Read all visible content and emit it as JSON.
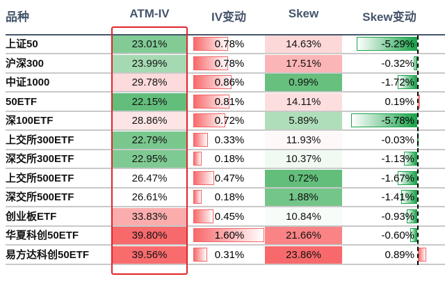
{
  "headers": [
    "品种",
    "ATM-IV",
    "IV变动",
    "Skew",
    "Skew变动"
  ],
  "colors": {
    "green": "#63be7b",
    "red": "#f8696b",
    "white": "#ffffff",
    "header": "#44546a",
    "highlight": "#e0242a"
  },
  "chart_data": {
    "type": "table",
    "columns": [
      "品种",
      "ATM-IV",
      "IV变动",
      "Skew",
      "Skew变动"
    ],
    "rows": [
      {
        "name": "上证50",
        "atm_iv": "23.01%",
        "iv_chg": "0.78%",
        "skew": "14.63%",
        "skew_chg": "-5.29%"
      },
      {
        "name": "沪深300",
        "atm_iv": "23.99%",
        "iv_chg": "0.78%",
        "skew": "17.51%",
        "skew_chg": "-0.32%"
      },
      {
        "name": "中证1000",
        "atm_iv": "29.78%",
        "iv_chg": "0.86%",
        "skew": "0.99%",
        "skew_chg": "-1.72%"
      },
      {
        "name": "50ETF",
        "atm_iv": "22.15%",
        "iv_chg": "0.81%",
        "skew": "14.11%",
        "skew_chg": "0.19%"
      },
      {
        "name": "深100ETF",
        "atm_iv": "28.86%",
        "iv_chg": "0.72%",
        "skew": "5.89%",
        "skew_chg": "-5.78%"
      },
      {
        "name": "上交所300ETF",
        "atm_iv": "22.79%",
        "iv_chg": "0.33%",
        "skew": "11.93%",
        "skew_chg": "-0.03%"
      },
      {
        "name": "深交所300ETF",
        "atm_iv": "22.95%",
        "iv_chg": "0.18%",
        "skew": "10.37%",
        "skew_chg": "-1.13%"
      },
      {
        "name": "上交所500ETF",
        "atm_iv": "26.47%",
        "iv_chg": "0.47%",
        "skew": "0.72%",
        "skew_chg": "-1.67%"
      },
      {
        "name": "深交所500ETF",
        "atm_iv": "26.61%",
        "iv_chg": "0.18%",
        "skew": "1.88%",
        "skew_chg": "-1.41%"
      },
      {
        "name": "创业板ETF",
        "atm_iv": "33.83%",
        "iv_chg": "0.45%",
        "skew": "10.84%",
        "skew_chg": "-0.93%"
      },
      {
        "name": "华夏科创50ETF",
        "atm_iv": "39.80%",
        "iv_chg": "1.60%",
        "skew": "21.66%",
        "skew_chg": "-0.60%"
      },
      {
        "name": "易方达科创50ETF",
        "atm_iv": "39.56%",
        "iv_chg": "0.31%",
        "skew": "23.86%",
        "skew_chg": "0.89%"
      }
    ]
  }
}
